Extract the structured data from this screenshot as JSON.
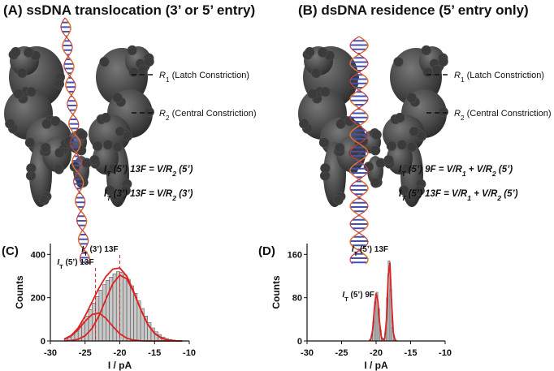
{
  "panels": [
    {
      "title": "(A) ssDNA translocation (3’ or 5’ entry)",
      "labels": [
        [
          "R",
          "1",
          " (Latch Constriction)"
        ],
        [
          "R",
          "2",
          " (Central Constriction)"
        ]
      ],
      "equations": [
        [
          "I",
          "T",
          " (5’) 13F = V/R",
          "2",
          " (5’)"
        ],
        [
          "I",
          "T",
          " (3’) 13F = V/R",
          "2",
          " (3’)"
        ]
      ]
    },
    {
      "title": "(B) dsDNA residence (5’ entry only)",
      "labels": [
        [
          "R",
          "1",
          " (Latch Constriction)"
        ],
        [
          "R",
          "2",
          " (Central Constriction)"
        ]
      ],
      "equations": [
        [
          "I",
          "T",
          " (5’) 9F = V/R",
          "1",
          " + V/R",
          "2",
          " (5’)"
        ],
        [
          "I",
          "T",
          " (5’) 13F = V/R",
          "1",
          " + V/R",
          "2",
          " (5’)"
        ]
      ]
    }
  ],
  "chart_data": [
    {
      "type": "histogram",
      "panel_label": "(C)",
      "xlabel": "I / pA",
      "ylabel": "Counts",
      "xlim": [
        -30,
        -10
      ],
      "xticks": [
        -30,
        -25,
        -20,
        -15,
        -10
      ],
      "ylim": [
        0,
        450
      ],
      "yticks": [
        0,
        200,
        400
      ],
      "color": "#c8c8c8",
      "bins": [
        -28,
        -27.5,
        -27,
        -26.5,
        -26,
        -25.5,
        -25,
        -24.5,
        -24,
        -23.5,
        -23,
        -22.5,
        -22,
        -21.5,
        -21,
        -20.5,
        -20,
        -19.5,
        -19,
        -18.5,
        -18,
        -17.5,
        -17,
        -16.5,
        -16,
        -15.5,
        -15,
        -14.5,
        -14,
        -13.5,
        -13,
        -12.5,
        -12,
        -11.5
      ],
      "counts": [
        10,
        18,
        30,
        45,
        65,
        90,
        115,
        145,
        175,
        205,
        235,
        260,
        280,
        295,
        310,
        320,
        318,
        305,
        285,
        255,
        220,
        185,
        150,
        115,
        85,
        60,
        42,
        28,
        18,
        11,
        7,
        4,
        2
      ],
      "fits": [
        {
          "color": "#d22",
          "x": [
            -28,
            -27,
            -26,
            -25,
            -24,
            -23,
            -22,
            -21,
            -20,
            -19,
            -18,
            -17,
            -16,
            -15,
            -14,
            -13,
            -12,
            -11
          ],
          "values": [
            8,
            23,
            52,
            91,
            122,
            129,
            105,
            67,
            33,
            13,
            4,
            1,
            0,
            0,
            0,
            0,
            0,
            0
          ]
        },
        {
          "color": "#d22",
          "x": [
            -28,
            -27,
            -26,
            -25,
            -24,
            -23,
            -22,
            -21,
            -20,
            -19,
            -18,
            -17,
            -16,
            -15,
            -14,
            -13,
            -12,
            -11
          ],
          "values": [
            1,
            2,
            8,
            24,
            58,
            116,
            193,
            265,
            304,
            287,
            224,
            146,
            78,
            35,
            13,
            4,
            1,
            0
          ]
        },
        {
          "color": "#d22",
          "x": [
            -28,
            -27,
            -26,
            -25,
            -24,
            -23,
            -22,
            -21,
            -20,
            -19,
            -18,
            -17,
            -16,
            -15,
            -14,
            -13,
            -12,
            -11
          ],
          "values": [
            9,
            25,
            60,
            115,
            180,
            245,
            298,
            332,
            337,
            300,
            228,
            147,
            78,
            35,
            13,
            4,
            1,
            0
          ]
        }
      ],
      "annotations": [
        {
          "x": -23.5,
          "parts": [
            "I",
            "T",
            " (5’) 13F"
          ],
          "dashed": true
        },
        {
          "x": -20,
          "parts": [
            "I",
            "T",
            " (3’) 13F"
          ],
          "dashed": true
        }
      ]
    },
    {
      "type": "histogram",
      "panel_label": "(D)",
      "xlabel": "I / pA",
      "ylabel": "Counts",
      "xlim": [
        -30,
        -10
      ],
      "xticks": [
        -30,
        -25,
        -20,
        -15,
        -10
      ],
      "ylim": [
        0,
        180
      ],
      "yticks": [
        0,
        80,
        160
      ],
      "color": "#c8c8c8",
      "bins": [
        -21,
        -20.75,
        -20.5,
        -20.25,
        -20,
        -19.75,
        -19.5,
        -19.25,
        -19,
        -18.75,
        -18.5,
        -18.25,
        -18,
        -17.75,
        -17.5,
        -17.25
      ],
      "counts": [
        2,
        10,
        35,
        72,
        90,
        60,
        20,
        5,
        3,
        15,
        80,
        148,
        95,
        25,
        3
      ],
      "fits": [
        {
          "color": "#d22",
          "x": [
            -21,
            -20.75,
            -20.5,
            -20.25,
            -20,
            -19.75,
            -19.5,
            -19.25,
            -19,
            -18.75,
            -18.5,
            -18.25,
            -18,
            -17.75,
            -17.5,
            -17.25,
            -17
          ],
          "values": [
            0,
            4,
            20,
            60,
            88,
            75,
            35,
            8,
            2,
            5,
            40,
            120,
            145,
            70,
            15,
            2,
            0
          ]
        }
      ],
      "annotations": [
        {
          "x": -20,
          "parts": [
            "I",
            "T",
            " (5’) 9F"
          ],
          "dashed": false
        },
        {
          "x": -18,
          "parts": [
            "I",
            "T",
            " (5’) 13F"
          ],
          "dashed": false
        }
      ]
    }
  ]
}
